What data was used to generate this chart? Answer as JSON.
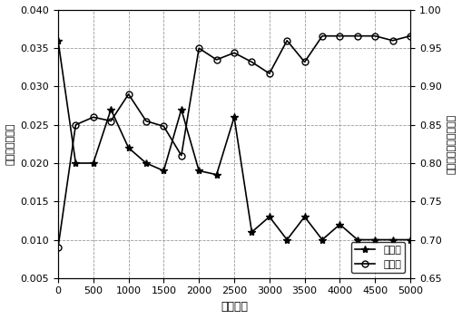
{
  "x": [
    0,
    250,
    500,
    750,
    1000,
    1250,
    1500,
    1750,
    2000,
    2250,
    2500,
    2750,
    3000,
    3250,
    3500,
    3750,
    4000,
    4250,
    4500,
    4750,
    5000
  ],
  "drop_rate": [
    0.036,
    0.02,
    0.02,
    0.027,
    0.022,
    0.02,
    0.019,
    0.027,
    0.019,
    0.0185,
    0.026,
    0.011,
    0.013,
    0.01,
    0.013,
    0.01,
    0.012,
    0.01,
    0.01,
    0.01,
    0.01
  ],
  "util_rate": [
    0.69,
    0.85,
    0.86,
    0.855,
    0.89,
    0.855,
    0.848,
    0.81,
    0.95,
    0.935,
    0.944,
    0.932,
    0.917,
    0.96,
    0.932,
    0.966,
    0.966,
    0.966,
    0.966,
    0.96,
    0.966
  ],
  "ylim_left": [
    0.005,
    0.04
  ],
  "ylim_right": [
    0.65,
    1.0
  ],
  "yticks_left": [
    0.005,
    0.01,
    0.015,
    0.02,
    0.025,
    0.03,
    0.035,
    0.04
  ],
  "yticks_right": [
    0.65,
    0.7,
    0.75,
    0.8,
    0.85,
    0.9,
    0.95,
    1.0
  ],
  "xlim": [
    0,
    5000
  ],
  "xticks": [
    0,
    500,
    1000,
    1500,
    2000,
    2500,
    3000,
    3500,
    4000,
    4500,
    5000
  ],
  "xlabel": "仿真步数",
  "ylabel_left": "系统握手失败率",
  "ylabel_right": "回程综合机资源利用率",
  "legend_drop": "握话率",
  "legend_util": "利用率",
  "drop_color": "black",
  "util_color": "black",
  "drop_marker": "*",
  "util_marker": "o",
  "linewidth": 1.2,
  "markersize_drop": 6,
  "markersize_util": 5,
  "grid": true,
  "background_color": "#ffffff",
  "font_family": "SimHei"
}
